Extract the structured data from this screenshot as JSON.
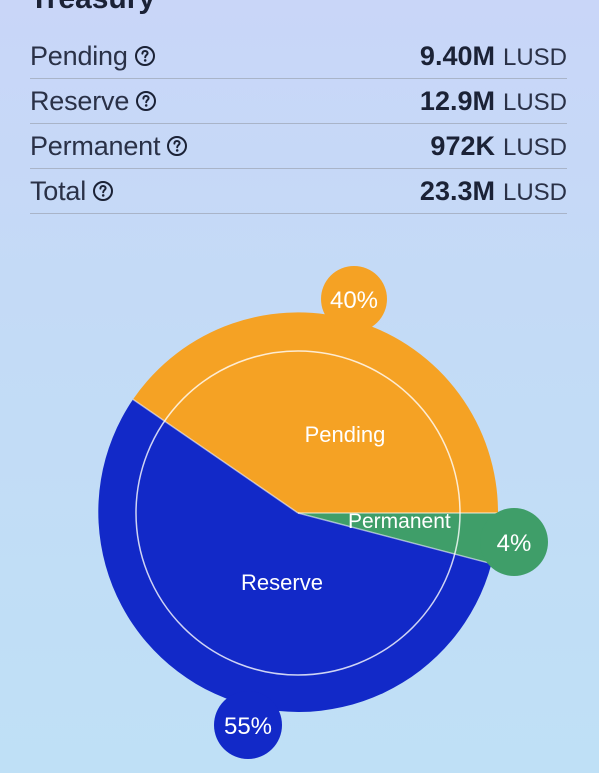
{
  "title": "Treasury",
  "rows": [
    {
      "label": "Pending",
      "value": "9.40M",
      "unit": "LUSD"
    },
    {
      "label": "Reserve",
      "value": "12.9M",
      "unit": "LUSD"
    },
    {
      "label": "Permanent",
      "value": "972K",
      "unit": "LUSD"
    },
    {
      "label": "Total",
      "value": "23.3M",
      "unit": "LUSD"
    }
  ],
  "icon": "help-circle-icon",
  "chart": {
    "segments": [
      {
        "label": "Pending",
        "percent_label": "40%",
        "share": 0.4,
        "color": "#f5a224"
      },
      {
        "label": "Permanent",
        "percent_label": "4%",
        "share": 0.04,
        "color": "#3f9e69"
      },
      {
        "label": "Reserve",
        "percent_label": "55%",
        "share": 0.55,
        "color": "#1229c8"
      }
    ]
  },
  "chart_data": {
    "type": "pie",
    "categories": [
      "Pending",
      "Permanent",
      "Reserve"
    ],
    "values": [
      40,
      4,
      55
    ],
    "title": "",
    "xlabel": "",
    "ylabel": ""
  }
}
